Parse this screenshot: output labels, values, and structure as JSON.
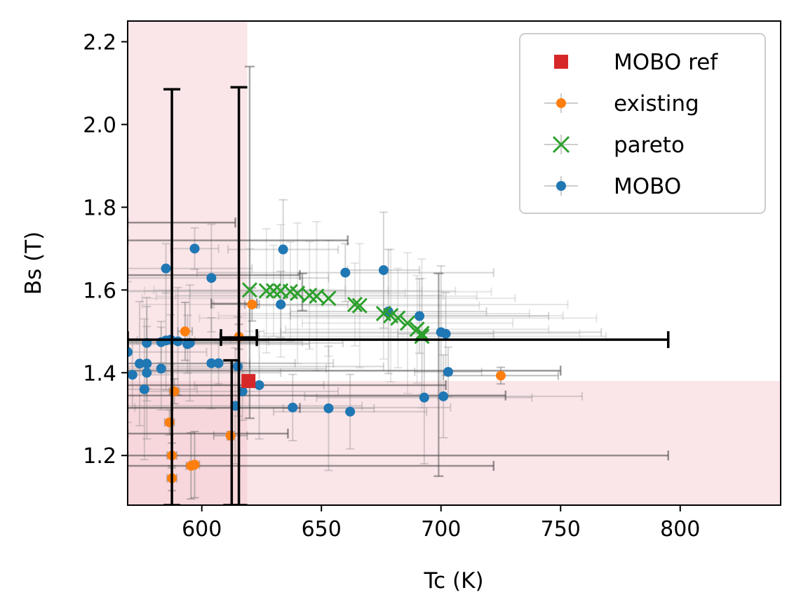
{
  "chart_data": {
    "type": "scatter",
    "xlabel": "Tc (K)",
    "ylabel": "Bs (T)",
    "xlim": [
      569,
      842
    ],
    "ylim": [
      1.08,
      2.25
    ],
    "xticks": [
      600,
      650,
      700,
      750,
      800
    ],
    "yticks": [
      1.2,
      1.4,
      1.6,
      1.8,
      2.0,
      2.2
    ],
    "xtick_labels": [
      "600",
      "650",
      "700",
      "750",
      "800"
    ],
    "ytick_labels": [
      "1.2",
      "1.4",
      "1.6",
      "1.8",
      "2.0",
      "2.2"
    ],
    "grid": false,
    "legend_position": "top-right",
    "shaded_regions": [
      {
        "x": [
          569,
          619
        ],
        "y": [
          1.08,
          2.25
        ],
        "color": "#f3c6cb"
      },
      {
        "x": [
          569,
          842
        ],
        "y": [
          1.08,
          1.38
        ],
        "color": "#f3c6cb"
      }
    ],
    "series": [
      {
        "name": "MOBO ref",
        "marker": "square",
        "color": "#d62728",
        "points": [
          {
            "x": 619.5,
            "y": 1.38
          }
        ]
      },
      {
        "name": "existing",
        "marker": "circle",
        "color": "#ff7f0e",
        "points": [
          {
            "x": 593.0,
            "y": 1.5,
            "xerr": 3,
            "yerr": 0.07
          },
          {
            "x": 621.0,
            "y": 1.565,
            "xerr": 3,
            "yerr": 0.04
          },
          {
            "x": 615.5,
            "y": 1.487,
            "xerr": 8,
            "yerr": 0.03
          },
          {
            "x": 588.5,
            "y": 1.355,
            "xerr": 2,
            "yerr": 0.03
          },
          {
            "x": 586.5,
            "y": 1.28,
            "xerr": 2,
            "yerr": 0.03
          },
          {
            "x": 587.5,
            "y": 1.2,
            "xerr": 2,
            "yerr": 0.03
          },
          {
            "x": 587.5,
            "y": 1.145,
            "xerr": 2,
            "yerr": 0.03
          },
          {
            "x": 595.5,
            "y": 1.175,
            "xerr": 2,
            "yerr": 0.08
          },
          {
            "x": 597.0,
            "y": 1.178,
            "xerr": 2,
            "yerr": 0.08
          },
          {
            "x": 612.0,
            "y": 1.248,
            "xerr": 7,
            "yerr": 0.01
          },
          {
            "x": 725.0,
            "y": 1.393,
            "xerr": 24,
            "yerr": 0.02
          }
        ]
      },
      {
        "name": "pareto",
        "marker": "x",
        "color": "#2ca02c",
        "points": [
          {
            "x": 620,
            "y": 1.6
          },
          {
            "x": 627,
            "y": 1.598
          },
          {
            "x": 630,
            "y": 1.598
          },
          {
            "x": 633,
            "y": 1.598
          },
          {
            "x": 637,
            "y": 1.596
          },
          {
            "x": 640,
            "y": 1.592
          },
          {
            "x": 645,
            "y": 1.587
          },
          {
            "x": 648,
            "y": 1.585
          },
          {
            "x": 653,
            "y": 1.58
          },
          {
            "x": 664,
            "y": 1.565
          },
          {
            "x": 666,
            "y": 1.562
          },
          {
            "x": 676,
            "y": 1.543
          },
          {
            "x": 679,
            "y": 1.538
          },
          {
            "x": 682,
            "y": 1.532
          },
          {
            "x": 686,
            "y": 1.52
          },
          {
            "x": 690,
            "y": 1.505
          },
          {
            "x": 692,
            "y": 1.495
          },
          {
            "x": 692,
            "y": 1.488
          }
        ]
      },
      {
        "name": "MOBO",
        "marker": "circle",
        "color": "#1f77b4",
        "points": [
          {
            "x": 597,
            "y": 1.7
          },
          {
            "x": 634,
            "y": 1.698
          },
          {
            "x": 585,
            "y": 1.652
          },
          {
            "x": 604,
            "y": 1.629
          },
          {
            "x": 660,
            "y": 1.642
          },
          {
            "x": 676,
            "y": 1.648
          },
          {
            "x": 633,
            "y": 1.565
          },
          {
            "x": 678,
            "y": 1.548
          },
          {
            "x": 691,
            "y": 1.537
          },
          {
            "x": 700,
            "y": 1.498
          },
          {
            "x": 702,
            "y": 1.494
          },
          {
            "x": 569,
            "y": 1.45
          },
          {
            "x": 577,
            "y": 1.472
          },
          {
            "x": 583,
            "y": 1.474
          },
          {
            "x": 585,
            "y": 1.478
          },
          {
            "x": 587,
            "y": 1.48
          },
          {
            "x": 590,
            "y": 1.476
          },
          {
            "x": 594,
            "y": 1.469
          },
          {
            "x": 595,
            "y": 1.472
          },
          {
            "x": 571,
            "y": 1.395
          },
          {
            "x": 574,
            "y": 1.422
          },
          {
            "x": 577,
            "y": 1.422
          },
          {
            "x": 577,
            "y": 1.4
          },
          {
            "x": 583,
            "y": 1.41
          },
          {
            "x": 576,
            "y": 1.36
          },
          {
            "x": 604,
            "y": 1.423
          },
          {
            "x": 607,
            "y": 1.423
          },
          {
            "x": 615,
            "y": 1.415
          },
          {
            "x": 703,
            "y": 1.402
          },
          {
            "x": 624,
            "y": 1.37
          },
          {
            "x": 617,
            "y": 1.355
          },
          {
            "x": 614,
            "y": 1.32
          },
          {
            "x": 638,
            "y": 1.316
          },
          {
            "x": 653,
            "y": 1.314
          },
          {
            "x": 662,
            "y": 1.306
          },
          {
            "x": 693,
            "y": 1.34
          },
          {
            "x": 701,
            "y": 1.343
          }
        ]
      }
    ],
    "highlighted_errorbars": [
      {
        "x": 587.5,
        "y": 1.47,
        "ylow": 1.08,
        "yhigh": 2.085
      },
      {
        "x": 615.5,
        "y": 1.4,
        "ylow": 1.08,
        "yhigh": 2.09
      },
      {
        "x": 612.5,
        "y": 1.3,
        "ylow": 1.08,
        "yhigh": 1.43
      },
      {
        "x": 618.0,
        "y": 1.48,
        "xlow": 569,
        "xhigh": 795
      },
      {
        "x": 615.0,
        "y": 1.485,
        "xlow": 608,
        "xhigh": 623
      }
    ]
  },
  "legend": {
    "entries": [
      {
        "label": "MOBO ref",
        "color": "#d62728",
        "marker": "square"
      },
      {
        "label": "existing",
        "color": "#ff7f0e",
        "marker": "circle"
      },
      {
        "label": "pareto",
        "color": "#2ca02c",
        "marker": "x"
      },
      {
        "label": "MOBO",
        "color": "#1f77b4",
        "marker": "circle"
      }
    ]
  }
}
